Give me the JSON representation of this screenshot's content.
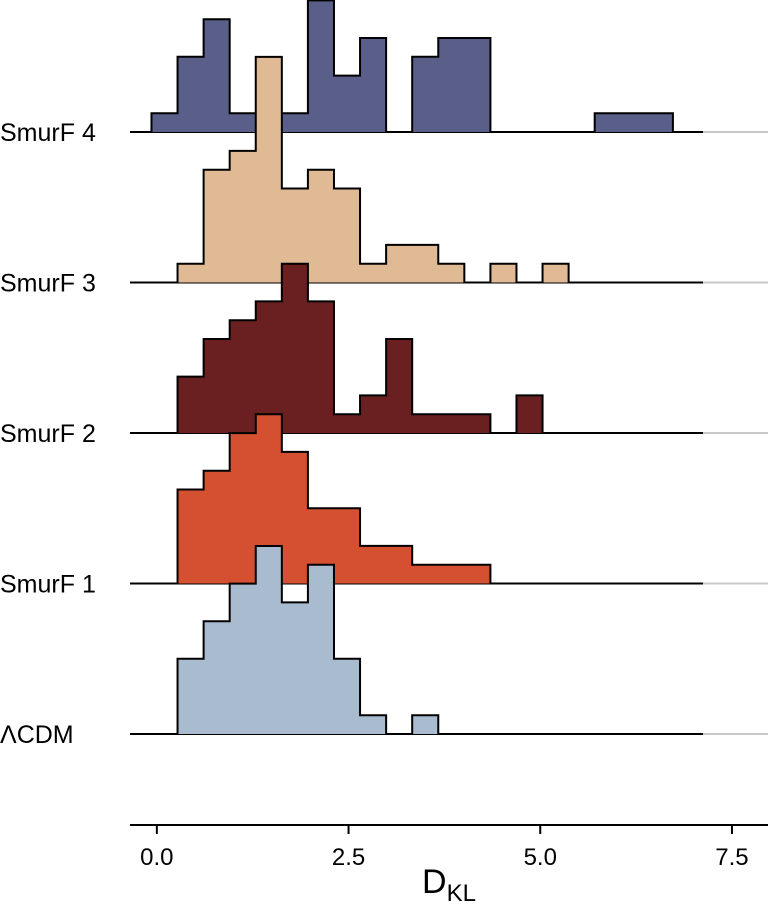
{
  "chart_data": {
    "type": "ridgeline-histogram",
    "xlabel": "D",
    "xlabel_sub": "KL",
    "xlim": [
      -0.35,
      7.97
    ],
    "xticks": [
      {
        "value": 0,
        "label": "0.0"
      },
      2.5,
      {
        "value": 5,
        "label": "5.0"
      },
      {
        "value": 7.5,
        "label": "7.5"
      }
    ],
    "bins": [
      -0.07,
      0.27,
      0.61,
      0.95,
      1.29,
      1.63,
      1.97,
      2.31,
      2.65,
      2.99,
      3.33,
      3.67,
      4.01,
      4.35,
      4.69,
      5.03,
      5.37,
      5.71,
      6.05,
      6.39,
      6.73
    ],
    "series": [
      {
        "name": "ΛCDM",
        "color": "#a9bccf",
        "values": [
          0,
          4,
          6,
          8,
          10,
          7,
          9,
          4,
          1,
          0,
          1,
          0,
          0,
          0,
          0,
          0,
          0,
          0,
          0,
          0
        ]
      },
      {
        "name": "SmurF 1",
        "color": "#d45030",
        "values": [
          0,
          5,
          6,
          8,
          9,
          7,
          4,
          4,
          2,
          2,
          1,
          1,
          1,
          0,
          0,
          0,
          0,
          0,
          0,
          0
        ]
      },
      {
        "name": "SmurF 2",
        "color": "#6a2020",
        "values": [
          0,
          3,
          5,
          6,
          7,
          9,
          7,
          1,
          2,
          5,
          1,
          1,
          1,
          0,
          2,
          0,
          0,
          0,
          0,
          0
        ]
      },
      {
        "name": "SmurF 3",
        "color": "#dfba94",
        "values": [
          0,
          1,
          6,
          7,
          12,
          5,
          6,
          5,
          1,
          2,
          2,
          1,
          0,
          1,
          0,
          1,
          0,
          0,
          0,
          0
        ]
      },
      {
        "name": "SmurF 4",
        "color": "#5a5f8a",
        "values": [
          1,
          4,
          6,
          1,
          1,
          1,
          7,
          3,
          5,
          0,
          4,
          5,
          5,
          0,
          0,
          0,
          0,
          1,
          1,
          1
        ]
      }
    ]
  }
}
